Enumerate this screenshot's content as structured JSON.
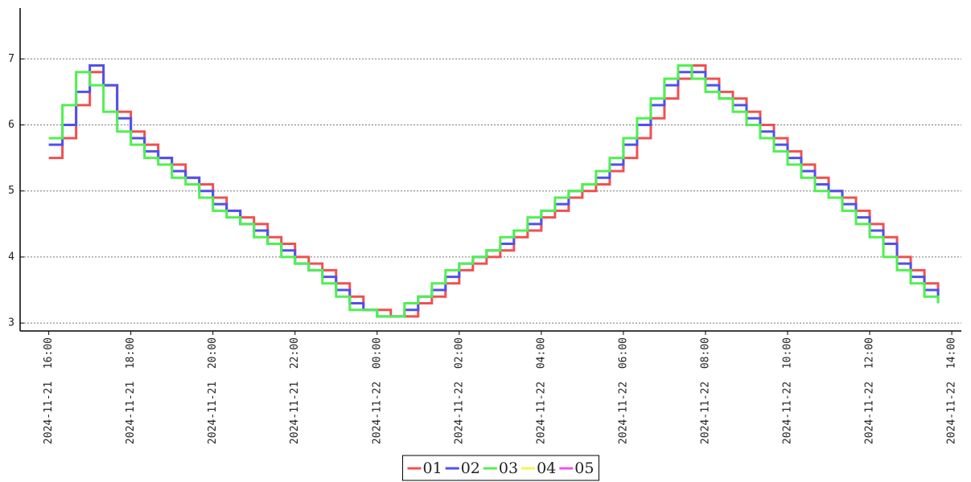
{
  "chart_data": {
    "type": "line",
    "step": true,
    "x": [
      "2024-11-21 16:00",
      "2024-11-21 16:20",
      "2024-11-21 16:40",
      "2024-11-21 17:00",
      "2024-11-21 17:20",
      "2024-11-21 17:40",
      "2024-11-21 18:00",
      "2024-11-21 18:20",
      "2024-11-21 18:40",
      "2024-11-21 19:00",
      "2024-11-21 19:20",
      "2024-11-21 19:40",
      "2024-11-21 20:00",
      "2024-11-21 20:20",
      "2024-11-21 20:40",
      "2024-11-21 21:00",
      "2024-11-21 21:20",
      "2024-11-21 21:40",
      "2024-11-21 22:00",
      "2024-11-21 22:20",
      "2024-11-21 22:40",
      "2024-11-21 23:00",
      "2024-11-21 23:20",
      "2024-11-21 23:40",
      "2024-11-22 00:00",
      "2024-11-22 00:20",
      "2024-11-22 00:40",
      "2024-11-22 01:00",
      "2024-11-22 01:20",
      "2024-11-22 01:40",
      "2024-11-22 02:00",
      "2024-11-22 02:20",
      "2024-11-22 02:40",
      "2024-11-22 03:00",
      "2024-11-22 03:20",
      "2024-11-22 03:40",
      "2024-11-22 04:00",
      "2024-11-22 04:20",
      "2024-11-22 04:40",
      "2024-11-22 05:00",
      "2024-11-22 05:20",
      "2024-11-22 05:40",
      "2024-11-22 06:00",
      "2024-11-22 06:20",
      "2024-11-22 06:40",
      "2024-11-22 07:00",
      "2024-11-22 07:20",
      "2024-11-22 07:40",
      "2024-11-22 08:00",
      "2024-11-22 08:20",
      "2024-11-22 08:40",
      "2024-11-22 09:00",
      "2024-11-22 09:20",
      "2024-11-22 09:40",
      "2024-11-22 10:00",
      "2024-11-22 10:20",
      "2024-11-22 10:40",
      "2024-11-22 11:00",
      "2024-11-22 11:20",
      "2024-11-22 11:40",
      "2024-11-22 12:00",
      "2024-11-22 12:20",
      "2024-11-22 12:40",
      "2024-11-22 13:00",
      "2024-11-22 13:20",
      "2024-11-22 13:40"
    ],
    "series": [
      {
        "name": "01",
        "color": "#f05050",
        "values": [
          5.5,
          5.8,
          6.3,
          6.8,
          6.6,
          6.2,
          5.9,
          5.7,
          5.5,
          5.4,
          5.2,
          5.1,
          4.9,
          4.7,
          4.6,
          4.5,
          4.3,
          4.2,
          4.0,
          3.9,
          3.8,
          3.6,
          3.4,
          3.2,
          3.2,
          3.1,
          3.1,
          3.3,
          3.4,
          3.6,
          3.8,
          3.9,
          4.0,
          4.1,
          4.3,
          4.4,
          4.6,
          4.7,
          4.9,
          5.0,
          5.1,
          5.3,
          5.5,
          5.8,
          6.1,
          6.4,
          6.7,
          6.9,
          6.7,
          6.5,
          6.4,
          6.2,
          6.0,
          5.8,
          5.6,
          5.4,
          5.2,
          5.0,
          4.9,
          4.7,
          4.5,
          4.3,
          4.0,
          3.8,
          3.6,
          3.4
        ]
      },
      {
        "name": "02",
        "color": "#5050f0",
        "values": [
          5.7,
          6.0,
          6.5,
          6.9,
          6.6,
          6.1,
          5.8,
          5.6,
          5.5,
          5.3,
          5.2,
          5.0,
          4.8,
          4.7,
          4.5,
          4.4,
          4.2,
          4.1,
          3.9,
          3.8,
          3.7,
          3.5,
          3.3,
          3.2,
          3.1,
          3.1,
          3.2,
          3.4,
          3.5,
          3.7,
          3.9,
          4.0,
          4.1,
          4.2,
          4.4,
          4.5,
          4.7,
          4.8,
          5.0,
          5.1,
          5.2,
          5.4,
          5.7,
          6.0,
          6.3,
          6.6,
          6.8,
          6.8,
          6.6,
          6.4,
          6.3,
          6.1,
          5.9,
          5.7,
          5.5,
          5.3,
          5.1,
          5.0,
          4.8,
          4.6,
          4.4,
          4.2,
          3.9,
          3.7,
          3.5,
          3.3
        ]
      },
      {
        "name": "03",
        "color": "#50f050",
        "values": [
          5.8,
          6.3,
          6.8,
          6.6,
          6.2,
          5.9,
          5.7,
          5.5,
          5.4,
          5.2,
          5.1,
          4.9,
          4.7,
          4.6,
          4.5,
          4.3,
          4.2,
          4.0,
          3.9,
          3.8,
          3.6,
          3.4,
          3.2,
          3.2,
          3.1,
          3.1,
          3.3,
          3.4,
          3.6,
          3.8,
          3.9,
          4.0,
          4.1,
          4.3,
          4.4,
          4.6,
          4.7,
          4.9,
          5.0,
          5.1,
          5.3,
          5.5,
          5.8,
          6.1,
          6.4,
          6.7,
          6.9,
          6.7,
          6.5,
          6.4,
          6.2,
          6.0,
          5.8,
          5.6,
          5.4,
          5.2,
          5.0,
          4.9,
          4.7,
          4.5,
          4.3,
          4.0,
          3.8,
          3.6,
          3.4,
          3.3
        ]
      },
      {
        "name": "04",
        "color": "#f5f550",
        "values": [
          null,
          null,
          null,
          null,
          null,
          null,
          null,
          null,
          null,
          null,
          null,
          null,
          null,
          null,
          null,
          null,
          null,
          null,
          null,
          null,
          null,
          null,
          null,
          null,
          null,
          null,
          null,
          null,
          null,
          null,
          null,
          null,
          null,
          null,
          null,
          null,
          null,
          null,
          null,
          null,
          null,
          null,
          null,
          null,
          null,
          null,
          null,
          null,
          null,
          null,
          null,
          null,
          null,
          null,
          null,
          null,
          null,
          null,
          null,
          null,
          null,
          null,
          null,
          null,
          null,
          null
        ]
      },
      {
        "name": "05",
        "color": "#f050f0",
        "values": [
          null,
          null,
          null,
          null,
          null,
          null,
          null,
          null,
          null,
          null,
          null,
          null,
          null,
          null,
          null,
          null,
          null,
          null,
          null,
          null,
          null,
          null,
          null,
          null,
          null,
          null,
          null,
          null,
          null,
          null,
          null,
          null,
          null,
          null,
          null,
          null,
          null,
          null,
          null,
          null,
          null,
          null,
          null,
          null,
          null,
          null,
          null,
          null,
          null,
          null,
          null,
          null,
          null,
          null,
          null,
          null,
          null,
          null,
          null,
          null,
          null,
          null,
          null,
          null,
          null,
          null
        ]
      }
    ],
    "xlim": [
      "2024-11-21 15:24",
      "2024-11-22 14:14"
    ],
    "xticks": [
      "2024-11-21  16:00",
      "2024-11-21  18:00",
      "2024-11-21  20:00",
      "2024-11-21  22:00",
      "2024-11-22  00:00",
      "2024-11-22  02:00",
      "2024-11-22  04:00",
      "2024-11-22  06:00",
      "2024-11-22  08:00",
      "2024-11-22  10:00",
      "2024-11-22  12:00",
      "2024-11-22  14:00"
    ],
    "ylim": [
      2.88,
      7.77
    ],
    "yticks": [
      3,
      4,
      5,
      6,
      7
    ],
    "grid": true,
    "legend": "bottom"
  }
}
